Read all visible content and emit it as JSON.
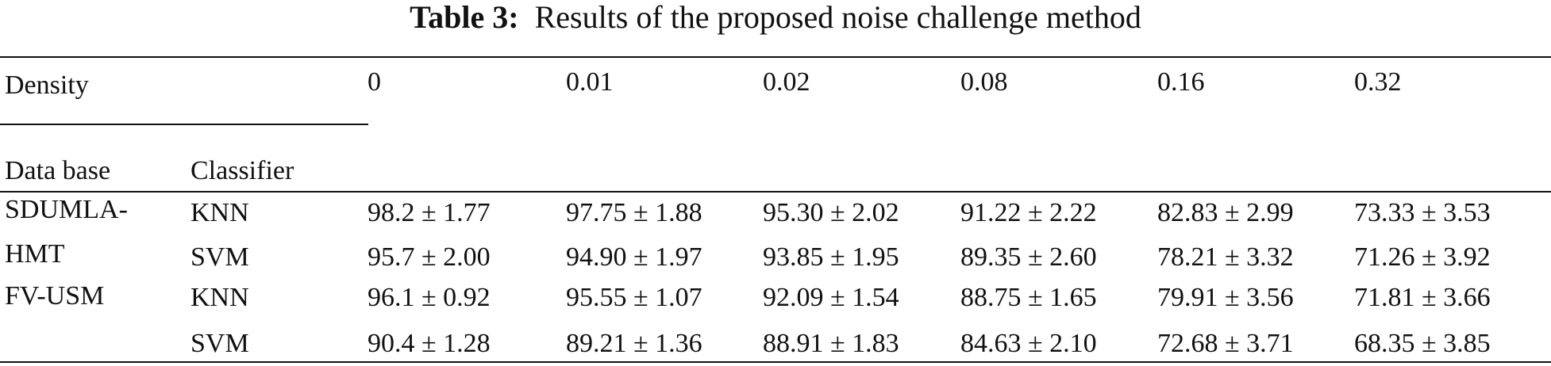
{
  "header": {
    "label": "Table 3:",
    "title": "Results of the proposed noise challenge method"
  },
  "table": {
    "density_label": "Density",
    "densities": [
      "0",
      "0.01",
      "0.02",
      "0.08",
      "0.16",
      "0.32"
    ],
    "column_headers": [
      "Data base",
      "Classifier"
    ],
    "groups": [
      {
        "database": "SDUMLA-HMT",
        "rows": [
          {
            "classifier": "KNN",
            "values": [
              "98.2 ± 1.77",
              "97.75 ± 1.88",
              "95.30 ± 2.02",
              "91.22 ± 2.22",
              "82.83 ± 2.99",
              "73.33 ± 3.53"
            ]
          },
          {
            "classifier": "SVM",
            "values": [
              "95.7 ± 2.00",
              "94.90 ± 1.97",
              "93.85 ± 1.95",
              "89.35 ± 2.60",
              "78.21 ± 3.32",
              "71.26 ± 3.92"
            ]
          }
        ]
      },
      {
        "database": "FV-USM",
        "rows": [
          {
            "classifier": "KNN",
            "values": [
              "96.1 ± 0.92",
              "95.55 ± 1.07",
              "92.09 ± 1.54",
              "88.75 ± 1.65",
              "79.91 ± 3.56",
              "71.81 ± 3.66"
            ]
          },
          {
            "classifier": "SVM",
            "values": [
              "90.4 ± 1.28",
              "89.21 ± 1.36",
              "88.91 ± 1.83",
              "84.63 ± 2.10",
              "72.68 ± 3.71",
              "68.35 ± 3.85"
            ]
          }
        ]
      }
    ]
  }
}
